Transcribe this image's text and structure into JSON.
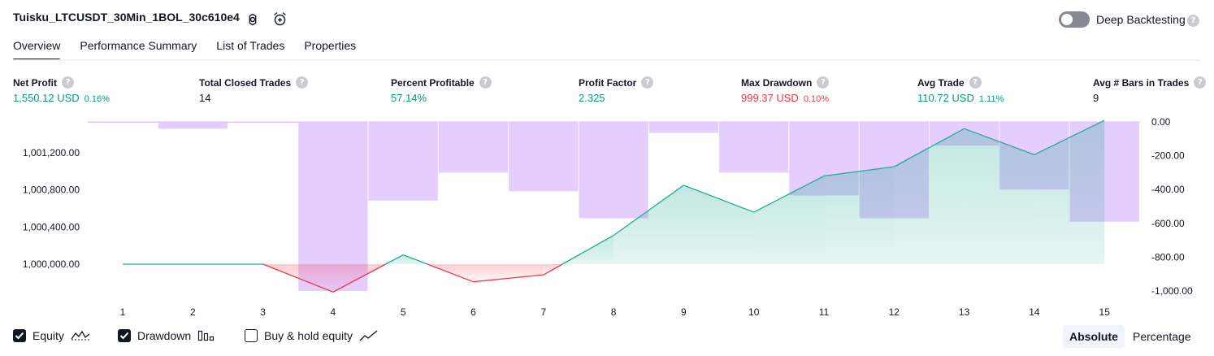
{
  "header": {
    "strategy_name": "Tuisku_LTCUSDT_30Min_1BOL_30c610e4",
    "settings_icon": "gear-icon",
    "add_alert_icon": "alarm-add-icon",
    "deep_backtesting_label": "Deep Backtesting",
    "deep_backtesting_on": false,
    "help_glyph": "?"
  },
  "tabs": [
    {
      "label": "Overview",
      "active": true
    },
    {
      "label": "Performance Summary",
      "active": false
    },
    {
      "label": "List of Trades",
      "active": false
    },
    {
      "label": "Properties",
      "active": false
    }
  ],
  "metrics": {
    "net_profit": {
      "label": "Net Profit",
      "value": "1,550.12 USD",
      "pct": "0.16%"
    },
    "total_closed_trades": {
      "label": "Total Closed Trades",
      "value": "14"
    },
    "percent_profitable": {
      "label": "Percent Profitable",
      "value": "57.14%"
    },
    "profit_factor": {
      "label": "Profit Factor",
      "value": "2.325"
    },
    "max_drawdown": {
      "label": "Max Drawdown",
      "value": "999.37 USD",
      "pct": "0.10%"
    },
    "avg_trade": {
      "label": "Avg Trade",
      "value": "110.72 USD",
      "pct": "1.11%"
    },
    "avg_bars": {
      "label": "Avg # Bars in Trades",
      "value": "9"
    }
  },
  "colors": {
    "profit": "#089981",
    "loss": "#f23645",
    "drawdown_bar": "#e1c4fd",
    "equity_line": "#22ab94",
    "equity_fill": "#daf2ec",
    "loss_fill": "#fbd9dc"
  },
  "chart_data": {
    "type": "line",
    "x": [
      1,
      2,
      3,
      4,
      5,
      6,
      7,
      8,
      9,
      10,
      11,
      12,
      13,
      14,
      15
    ],
    "x_tick_labels": [
      "1",
      "2",
      "3",
      "4",
      "5",
      "6",
      "7",
      "8",
      "9",
      "10",
      "11",
      "12",
      "13",
      "14",
      "15"
    ],
    "series": [
      {
        "name": "Equity",
        "axis": "left",
        "values": [
          1000000,
          1000000,
          1000000,
          999700,
          1000100,
          999810,
          999885,
          1000310,
          1000850,
          1000560,
          1000950,
          1001050,
          1001460,
          1001180,
          1001550
        ]
      },
      {
        "name": "Drawdown",
        "axis": "right",
        "type": "bar",
        "values": [
          -3,
          -40,
          -3,
          -1000,
          -465,
          -300,
          -410,
          -570,
          -65,
          -300,
          -435,
          -570,
          -140,
          -400,
          -590
        ]
      }
    ],
    "y_left": {
      "ticks": [
        "1,000,000.00",
        "1,000,400.00",
        "1,000,800.00",
        "1,001,200.00"
      ],
      "tick_values": [
        1000000,
        1000400,
        1000800,
        1001200
      ]
    },
    "y_right": {
      "ticks": [
        "0.00",
        "-200.00",
        "-400.00",
        "-600.00",
        "-800.00",
        "-1,000.00"
      ],
      "tick_values": [
        0,
        -200,
        -400,
        -600,
        -800,
        -1000
      ]
    },
    "baseline": 1000000
  },
  "legend": {
    "equity": {
      "label": "Equity",
      "checked": true,
      "icon": "equity-line-icon"
    },
    "drawdown": {
      "label": "Drawdown",
      "checked": true,
      "icon": "drawdown-bars-icon"
    },
    "buy_hold": {
      "label": "Buy & hold equity",
      "checked": false,
      "icon": "buy-hold-line-icon"
    }
  },
  "view_toggle": {
    "absolute": "Absolute",
    "percentage": "Percentage",
    "selected": "absolute"
  }
}
